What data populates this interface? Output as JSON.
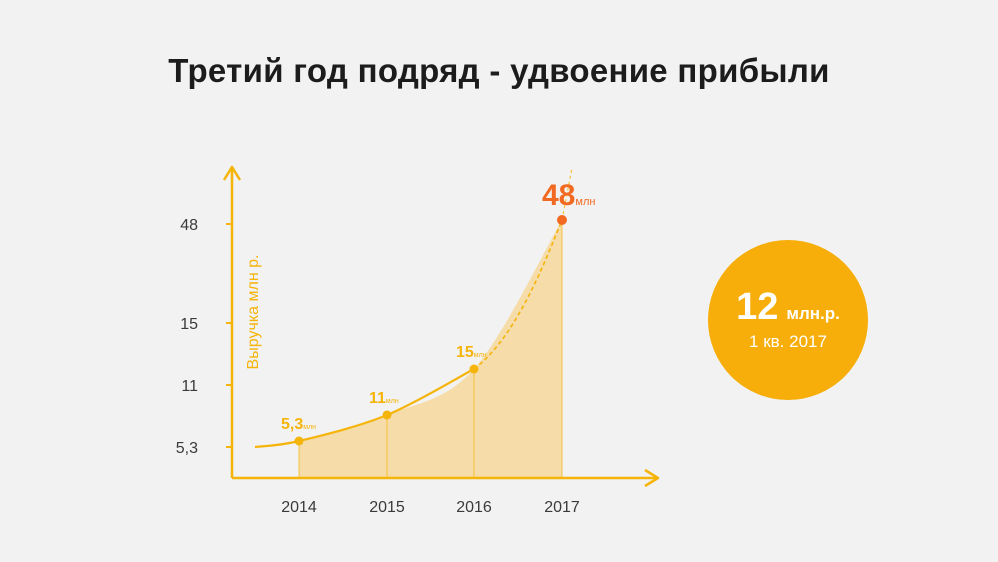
{
  "slide": {
    "title": "Третий год подряд - удвоение прибыли"
  },
  "chart_data": {
    "type": "area",
    "title": "Третий год подряд - удвоение прибыли",
    "ylabel": "Выручка млн р.",
    "xlabel": "",
    "categories": [
      "2014",
      "2015",
      "2016",
      "2017"
    ],
    "y_ticks": [
      "5,3",
      "11",
      "15",
      "48"
    ],
    "series": [
      {
        "values": [
          5.3,
          11,
          15,
          48
        ],
        "point_labels": [
          "5,3",
          "11",
          "15",
          "48"
        ],
        "unit_label": "млн"
      }
    ],
    "highlight_index": 3,
    "grid": false,
    "colors": {
      "line": "#f5b40a",
      "fill": "#f5dca8",
      "axis": "#f5b40a",
      "highlight": "#f26a21",
      "tick_text": "#3a3a3a"
    }
  },
  "badge": {
    "value": "12",
    "unit": "млн.р.",
    "caption": "1 кв. 2017",
    "color": "#f7ad0a"
  }
}
